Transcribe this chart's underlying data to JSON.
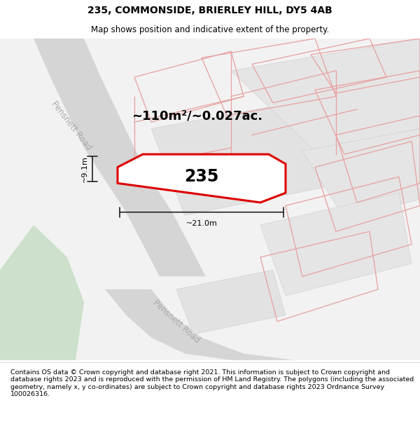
{
  "title": "235, COMMONSIDE, BRIERLEY HILL, DY5 4AB",
  "subtitle": "Map shows position and indicative extent of the property.",
  "footer": "Contains OS data © Crown copyright and database right 2021. This information is subject to Crown copyright and database rights 2023 and is reproduced with the permission of HM Land Registry. The polygons (including the associated geometry, namely x, y co-ordinates) are subject to Crown copyright and database rights 2023 Ordnance Survey 100026316.",
  "area_label": "~110m²/~0.027ac.",
  "number_label": "235",
  "dim_width": "~21.0m",
  "dim_height": "~9.1m",
  "road_label_1": "Pensnett Road",
  "road_label_2": "Pensnett Road",
  "map_bg": "#f2f2f2",
  "main_polygon_color": "#dd0000",
  "neighbor_polygon_color": "#e8a0a0",
  "neighbor_polygon_fill": "#e8e8e8",
  "green_area_color": "#cce0cc",
  "road_fill": "#d5d5d5",
  "dim_line_color": "#222222",
  "title_fontsize": 10,
  "subtitle_fontsize": 8.5,
  "footer_fontsize": 6.8,
  "area_label_fontsize": 13,
  "number_label_fontsize": 17,
  "dim_fontsize": 8,
  "road_label_fontsize": 8.5
}
